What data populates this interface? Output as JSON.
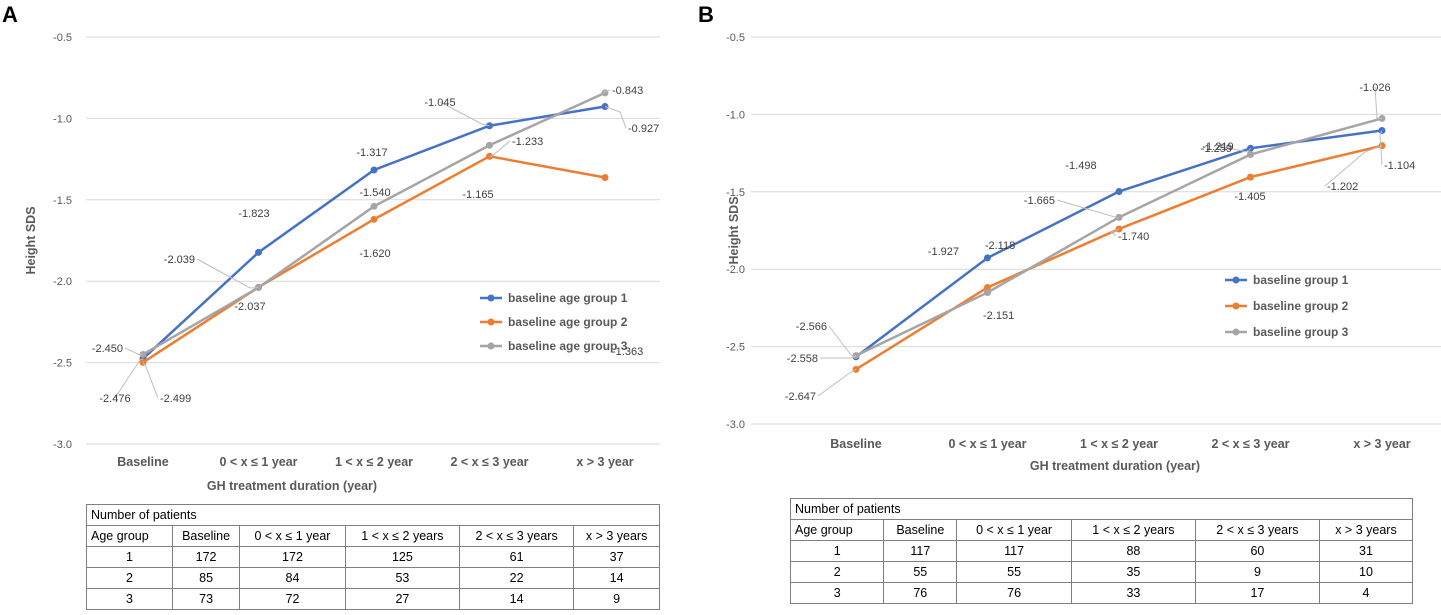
{
  "panels": [
    {
      "letter": "A",
      "chart_data": {
        "type": "line",
        "title": "",
        "xlabel": "GH treatment duration (year)",
        "ylabel": "Height SDS",
        "ylim": [
          -3.0,
          -0.5
        ],
        "yticks": [
          "-0.5",
          "-1.0",
          "-1.5",
          "-2.0",
          "-2.5",
          "-3.0"
        ],
        "categories": [
          "Baseline",
          "0 < x ≤ 1 year",
          "1 < x ≤ 2 year",
          "2 < x ≤ 3 year",
          "x > 3 year"
        ],
        "legend_position": "right",
        "series": [
          {
            "name": "baseline age group 1",
            "color": "#4472C4",
            "values": [
              -2.476,
              -1.823,
              -1.317,
              -1.045,
              -0.927
            ],
            "labels": [
              "-2.476",
              "-1.823",
              "-1.317",
              "-1.045",
              "-0.927"
            ]
          },
          {
            "name": "baseline age group 2",
            "color": "#ED7D31",
            "values": [
              -2.499,
              -2.037,
              -1.62,
              -1.233,
              -1.363
            ],
            "labels": [
              "-2.499",
              "-2.037",
              "-1.620",
              "-1.233",
              "-1.363"
            ]
          },
          {
            "name": "baseline age group 3",
            "color": "#A5A5A5",
            "values": [
              -2.45,
              -2.039,
              -1.54,
              -1.165,
              -0.843
            ],
            "labels": [
              "-2.450",
              "-2.039",
              "-1.540",
              "-1.165",
              "-0.843"
            ]
          }
        ]
      },
      "table": {
        "title": "Number of patients",
        "header": [
          "Age group",
          "Baseline",
          "0 < x ≤ 1 year",
          "1 < x ≤ 2 years",
          "2 < x ≤ 3 years",
          "x > 3 years"
        ],
        "rows": [
          [
            "1",
            "172",
            "172",
            "125",
            "61",
            "37"
          ],
          [
            "2",
            "85",
            "84",
            "53",
            "22",
            "14"
          ],
          [
            "3",
            "73",
            "72",
            "27",
            "14",
            "9"
          ]
        ]
      }
    },
    {
      "letter": "B",
      "chart_data": {
        "type": "line",
        "title": "",
        "xlabel": "GH treatment duration (year)",
        "ylabel": "Height SDS",
        "ylim": [
          -3.0,
          -0.5
        ],
        "yticks": [
          "-0.5",
          "-1.0",
          "-1.5",
          "-2.0",
          "-2.5",
          "-3.0"
        ],
        "categories": [
          "Baseline",
          "0 < x ≤ 1 year",
          "1 < x ≤ 2 year",
          "2 < x ≤ 3 year",
          "x > 3 year"
        ],
        "legend_position": "right",
        "series": [
          {
            "name": "baseline group 1",
            "color": "#4472C4",
            "values": [
              -2.566,
              -1.927,
              -1.498,
              -1.219,
              -1.104
            ],
            "labels": [
              "-2.566",
              "-1.927",
              "-1.498",
              "-1.219",
              "-1.104"
            ]
          },
          {
            "name": "baseline group 2",
            "color": "#ED7D31",
            "values": [
              -2.647,
              -2.118,
              -1.74,
              -1.405,
              -1.202
            ],
            "labels": [
              "-2.647",
              "-2.118",
              "-1.740",
              "-1.405",
              "-1.202"
            ]
          },
          {
            "name": "baseline group 3",
            "color": "#A5A5A5",
            "values": [
              -2.558,
              -2.151,
              -1.665,
              -1.259,
              -1.026
            ],
            "labels": [
              "-2.558",
              "-2.151",
              "-1.665",
              "-1.259",
              "-1.026"
            ]
          }
        ]
      },
      "table": {
        "title": "Number of patients",
        "header": [
          "Age group",
          "Baseline",
          "0 < x ≤ 1 year",
          "1 < x ≤ 2 years",
          "2 < x ≤ 3 years",
          "x > 3 years"
        ],
        "rows": [
          [
            "1",
            "117",
            "117",
            "88",
            "60",
            "31"
          ],
          [
            "2",
            "55",
            "55",
            "35",
            "9",
            "10"
          ],
          [
            "3",
            "76",
            "76",
            "33",
            "17",
            "4"
          ]
        ]
      }
    }
  ]
}
